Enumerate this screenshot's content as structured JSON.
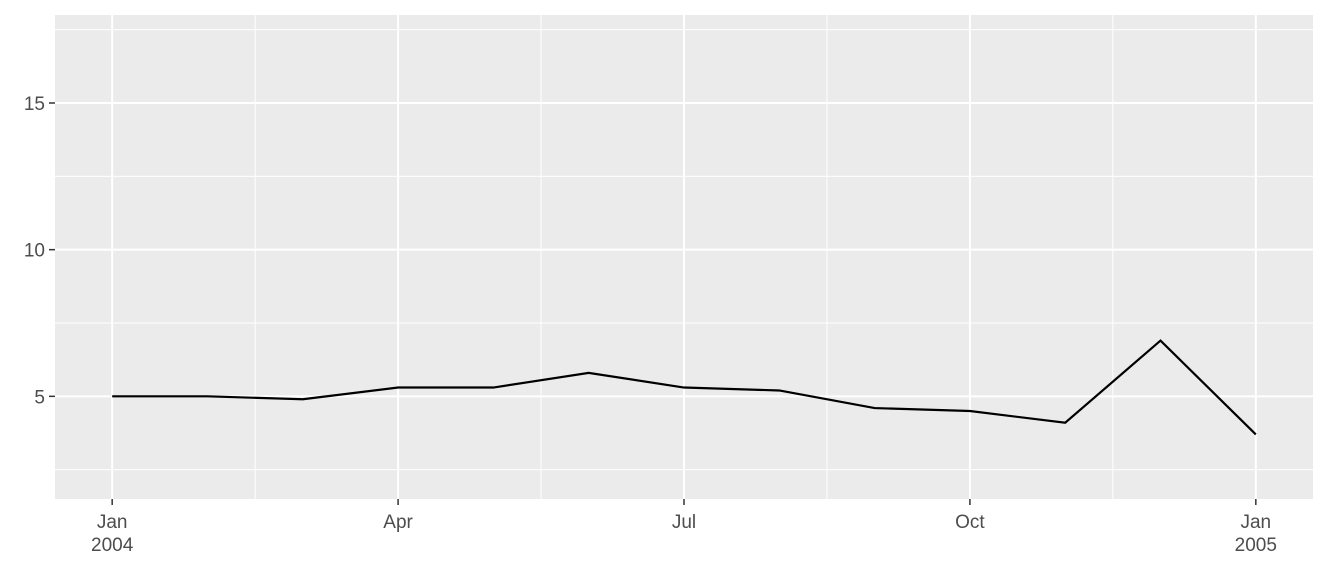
{
  "chart_data": {
    "type": "line",
    "x": [
      "2004-01",
      "2004-02",
      "2004-03",
      "2004-04",
      "2004-05",
      "2004-06",
      "2004-07",
      "2004-08",
      "2004-09",
      "2004-10",
      "2004-11",
      "2004-12",
      "2005-01"
    ],
    "series": [
      {
        "color": "#000000",
        "values": [
          5.0,
          5.0,
          4.9,
          5.3,
          5.3,
          5.8,
          5.3,
          5.2,
          4.6,
          4.5,
          4.1,
          6.9,
          3.7
        ]
      }
    ],
    "xticks": [
      {
        "value": "2004-01",
        "label": "Jan\n2004"
      },
      {
        "value": "2004-04",
        "label": "Apr"
      },
      {
        "value": "2004-07",
        "label": "Jul"
      },
      {
        "value": "2004-10",
        "label": "Oct"
      },
      {
        "value": "2005-01",
        "label": "Jan\n2005"
      }
    ],
    "ylim": [
      1.5,
      18.0
    ],
    "yticks": [
      5,
      10,
      15
    ],
    "minor_yticks": [
      2.5,
      7.5,
      12.5,
      17.5
    ],
    "grid": true
  }
}
